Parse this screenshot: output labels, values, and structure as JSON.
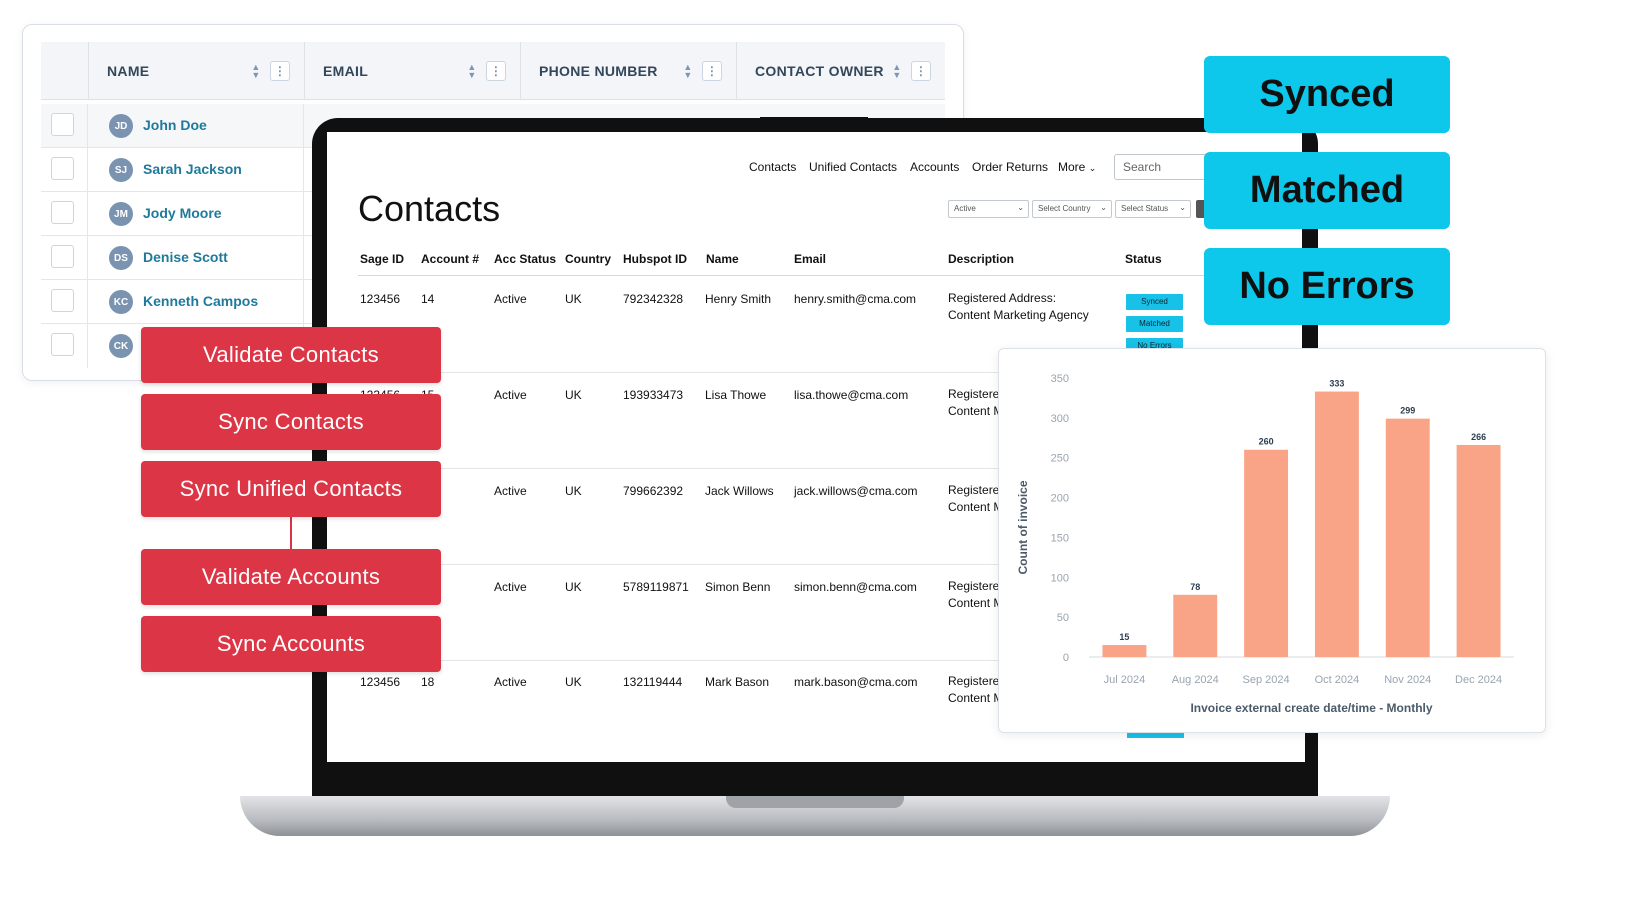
{
  "crm": {
    "columns": [
      {
        "label": "NAME"
      },
      {
        "label": "EMAIL"
      },
      {
        "label": "PHONE NUMBER"
      },
      {
        "label": "CONTACT OWNER"
      }
    ],
    "rows": [
      {
        "initials": "JD",
        "name": "John Doe"
      },
      {
        "initials": "SJ",
        "name": "Sarah Jackson"
      },
      {
        "initials": "JM",
        "name": "Jody Moore"
      },
      {
        "initials": "DS",
        "name": "Denise Scott"
      },
      {
        "initials": "KC",
        "name": "Kenneth Campos"
      },
      {
        "initials": "CK",
        "name": ""
      }
    ]
  },
  "app": {
    "nav": [
      "Contacts",
      "Unified Contacts",
      "Accounts",
      "Order Returns",
      "More"
    ],
    "search_placeholder": "Search",
    "title": "Contacts",
    "filters": [
      "Active",
      "Select Country",
      "Select Status"
    ],
    "headers": [
      "Sage ID",
      "Account #",
      "Acc Status",
      "Country",
      "Hubspot ID",
      "Name",
      "Email",
      "Description",
      "Status"
    ],
    "rows": [
      {
        "sage_id": "123456",
        "account": "14",
        "acc_status": "Active",
        "country": "UK",
        "hubspot_id": "792342328",
        "name": "Henry Smith",
        "email": "henry.smith@cma.com",
        "desc1": "Registered Address:",
        "desc2": "Content Marketing Agency"
      },
      {
        "sage_id": "123456",
        "account": "15",
        "acc_status": "Active",
        "country": "UK",
        "hubspot_id": "193933473",
        "name": "Lisa Thowe",
        "email": "lisa.thowe@cma.com",
        "desc1": "Registere",
        "desc2": "Content M"
      },
      {
        "sage_id": "",
        "account": "",
        "acc_status": "Active",
        "country": "UK",
        "hubspot_id": "799662392",
        "name": "Jack Willows",
        "email": "jack.willows@cma.com",
        "desc1": "Registere",
        "desc2": "Content M"
      },
      {
        "sage_id": "",
        "account": "",
        "acc_status": "Active",
        "country": "UK",
        "hubspot_id": "5789119871",
        "name": "Simon Benn",
        "email": "simon.benn@cma.com",
        "desc1": "Registere",
        "desc2": "Content M"
      },
      {
        "sage_id": "123456",
        "account": "18",
        "acc_status": "Active",
        "country": "UK",
        "hubspot_id": "132119444",
        "name": "Mark Bason",
        "email": "mark.bason@cma.com",
        "desc1": "Registere",
        "desc2": "Content M"
      }
    ],
    "status_badges": [
      "Synced",
      "Matched",
      "No Errors"
    ]
  },
  "callouts": {
    "status": [
      "Synced",
      "Matched",
      "No Errors"
    ],
    "actions": [
      "Validate Contacts",
      "Sync Contacts",
      "Sync Unified Contacts",
      "Validate Accounts",
      "Sync Accounts"
    ]
  },
  "colors": {
    "accent_blue": "#0dc8ea",
    "action_red": "#dc3545",
    "bar": "#f9a487",
    "link": "#1e7a9c"
  },
  "icons": {
    "sort": "sort-arrows-icon",
    "column_menu": "kebab-menu-icon",
    "checkbox": "checkbox-icon",
    "more_chevron": "chevron-down-icon"
  },
  "chart_data": {
    "type": "bar",
    "categories": [
      "Jul 2024",
      "Aug 2024",
      "Sep 2024",
      "Oct 2024",
      "Nov 2024",
      "Dec 2024"
    ],
    "values": [
      15,
      78,
      260,
      333,
      299,
      266
    ],
    "title": "",
    "xlabel": "Invoice external create date/time - Monthly",
    "ylabel": "Count of invoice",
    "ylim": [
      0,
      350
    ],
    "yticks": [
      0,
      50,
      100,
      150,
      200,
      250,
      300,
      350
    ],
    "grid": false,
    "data_labels": true,
    "color": "#f9a487"
  }
}
